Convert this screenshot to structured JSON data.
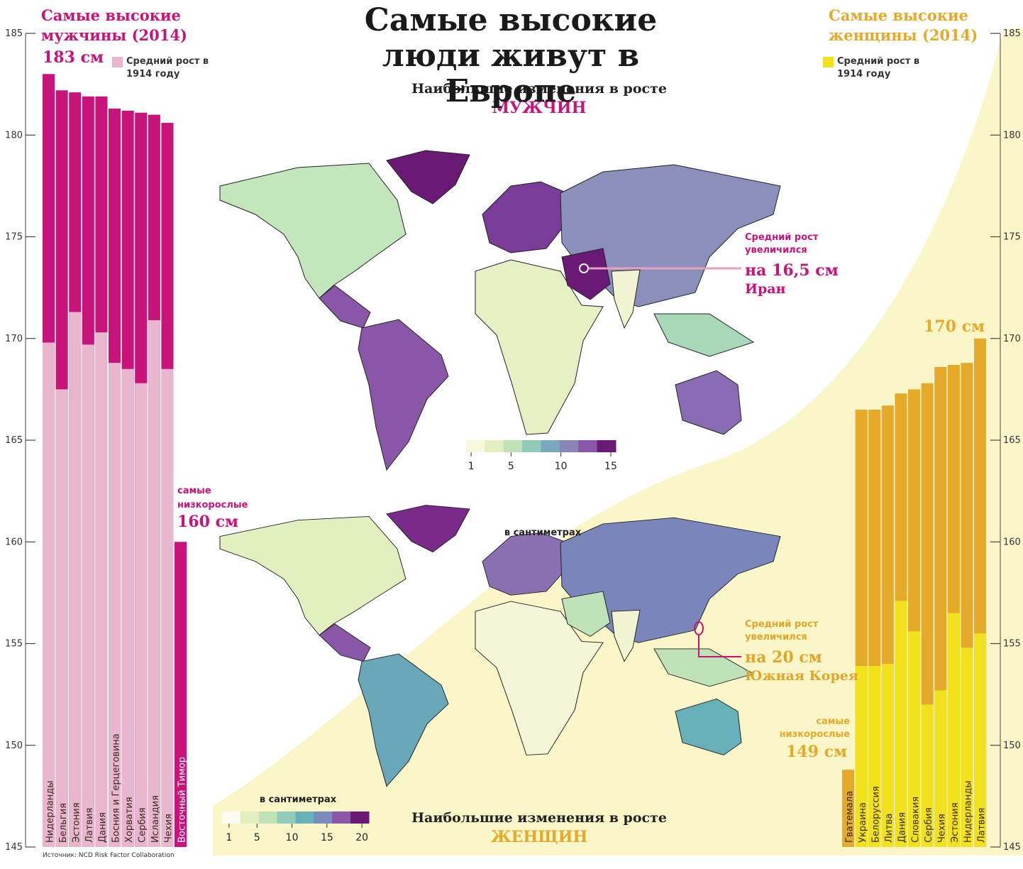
{
  "title": "Самые высокие люди живут в Европе",
  "source": "Источник: NCD Risk Factor Collaboration",
  "chart_data": [
    {
      "type": "bar",
      "side": "left",
      "title": "Самые высокие мужчины (2014)",
      "top_label": "183 см",
      "shortest_note": "самые низкорослые",
      "shortest_label": "160 см",
      "categories": [
        "Нидерланды",
        "Бельгия",
        "Эстония",
        "Латвия",
        "Дания",
        "Босния и Герцеговина",
        "Хорватия",
        "Сербия",
        "Исландия",
        "Чехия",
        "Восточный Тимор"
      ],
      "series": [
        {
          "color": "#c8147a",
          "values": [
            183.0,
            182.2,
            182.1,
            181.9,
            181.9,
            181.3,
            181.2,
            181.1,
            181.0,
            180.6,
            160.0
          ]
        },
        {
          "name": "Средний рост в 1914 году",
          "color": "#e8b6cd",
          "values": [
            169.8,
            167.5,
            171.3,
            169.7,
            170.3,
            168.8,
            168.5,
            167.8,
            170.9,
            168.5,
            null
          ]
        }
      ],
      "ylim": [
        145,
        185
      ],
      "yticks": [
        145,
        150,
        155,
        160,
        165,
        170,
        175,
        180,
        185
      ]
    },
    {
      "type": "bar",
      "side": "right",
      "title": "Самые высокие женщины (2014)",
      "top_label": "170 см",
      "shortest_note": "самые низкорослые",
      "shortest_label": "149 см",
      "categories": [
        "Гватемала",
        "Украина",
        "Белоруссия",
        "Литва",
        "Дания",
        "Словакия",
        "Сербия",
        "Чехия",
        "Эстония",
        "Нидерланды",
        "Латвия"
      ],
      "series": [
        {
          "color": "#e6aa2a",
          "values": [
            148.8,
            166.5,
            166.5,
            166.7,
            167.3,
            167.5,
            167.8,
            168.6,
            168.7,
            168.8,
            170.0
          ]
        },
        {
          "name": "Средний рост в 1914 году",
          "color": "#f2e21e",
          "values": [
            null,
            153.9,
            153.9,
            154.0,
            157.1,
            155.6,
            152.0,
            152.7,
            156.5,
            154.8,
            155.5
          ]
        }
      ],
      "ylim": [
        145,
        185
      ],
      "yticks": [
        145,
        150,
        155,
        160,
        165,
        170,
        175,
        180,
        185
      ]
    }
  ],
  "maps": [
    {
      "subtitle": "Наибольшие изменения в росте",
      "group": "МУЖЧИН",
      "scale_label": "в сантиметрах",
      "scale_range": [
        0.5,
        15.5
      ],
      "scale_ticks": [
        1,
        5,
        10,
        15
      ],
      "scale_colors": [
        "#f8f8dc",
        "#e2f0c0",
        "#bfe2b8",
        "#8fcbb8",
        "#7aa8bd",
        "#8a86bb",
        "#8a56a8",
        "#6a1a74"
      ],
      "callout_lines": [
        "Средний рост",
        "увеличился"
      ],
      "callout_value": "на 16,5 см",
      "callout_country": "Иран"
    },
    {
      "subtitle": "Наибольшие изменения в росте",
      "group": "ЖЕНЩИН",
      "scale_label": "в сантиметрах",
      "scale_range": [
        0,
        21
      ],
      "scale_ticks": [
        1,
        5,
        10,
        15,
        20
      ],
      "scale_colors": [
        "#fbfbf0",
        "#e2f0c0",
        "#bfe2b8",
        "#8fcbb8",
        "#68b0b8",
        "#7a8cbd",
        "#8a56a8",
        "#6a1a74"
      ],
      "callout_lines": [
        "Средний рост",
        "увеличился"
      ],
      "callout_value": "на 20 см",
      "callout_country": "Южная Корея"
    }
  ]
}
